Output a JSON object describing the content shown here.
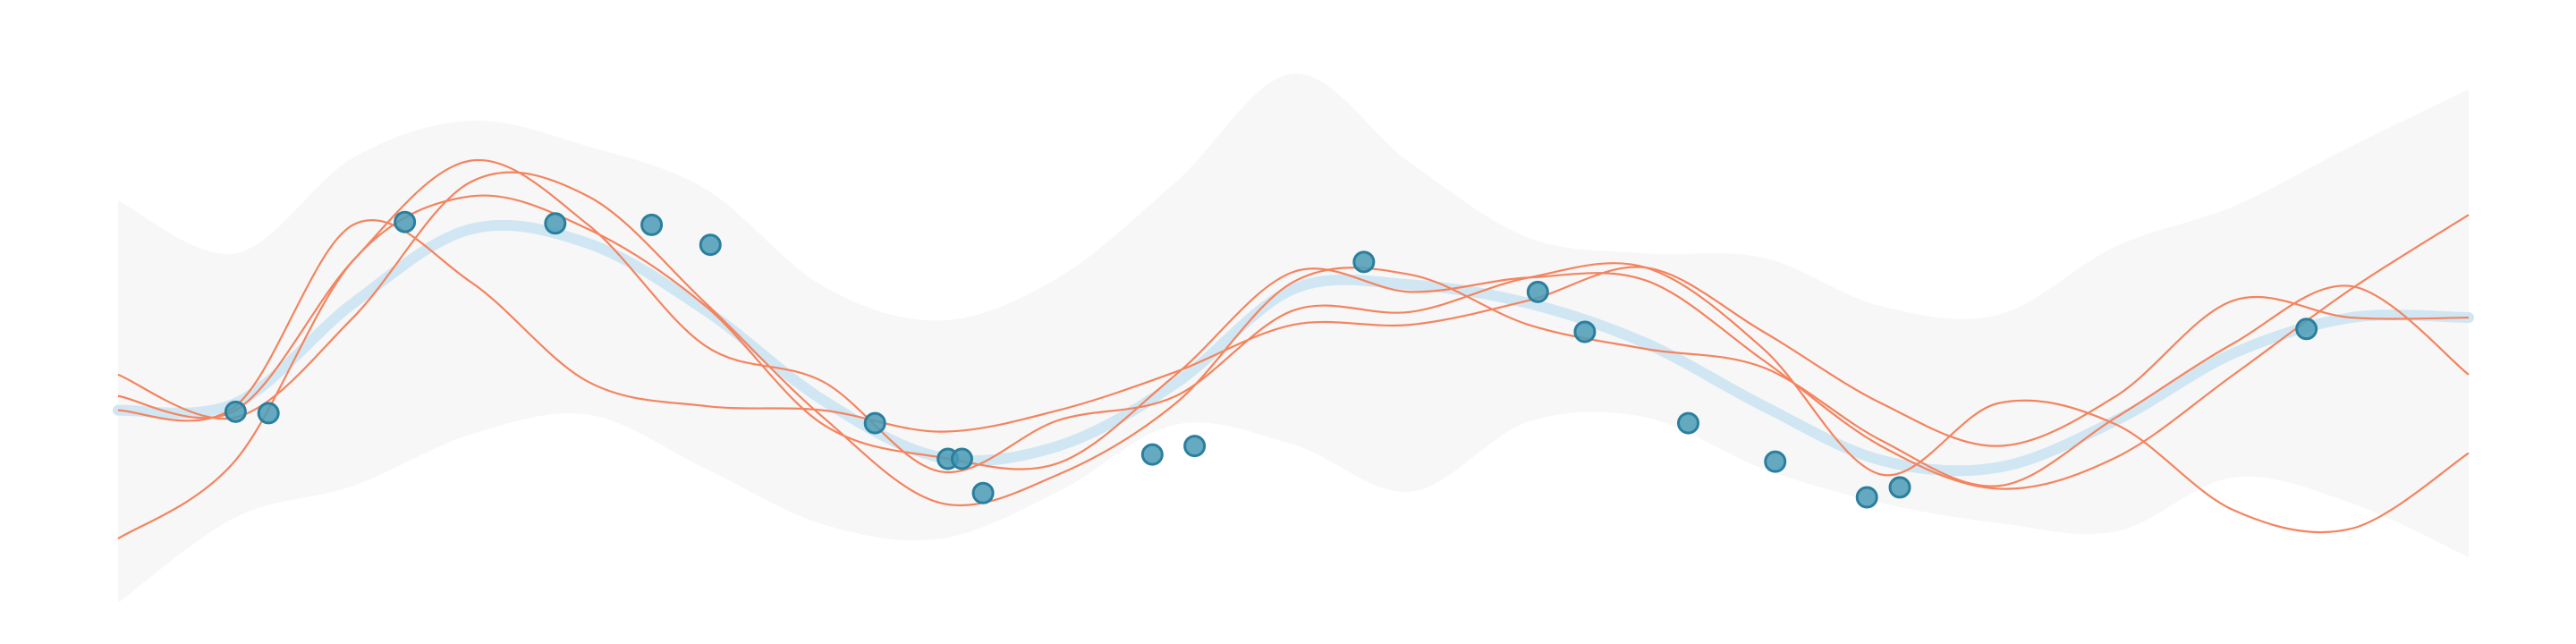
{
  "chart_data": {
    "type": "line",
    "title": "",
    "xlabel": "",
    "ylabel": "",
    "xlim": [
      0,
      10
    ],
    "ylim": [
      -2,
      2
    ],
    "grid": false,
    "legend": "none",
    "colors": {
      "band": "#f7f7f7",
      "mean": "#d0e6f3",
      "samples": "#f4845f",
      "observations": "#4a9bb5",
      "observations_edge": "#2b7f9e"
    },
    "confidence_band": {
      "x": [
        0,
        0.5,
        1,
        1.5,
        2,
        2.5,
        3,
        3.5,
        4,
        4.5,
        5,
        5.5,
        6,
        6.5,
        7,
        7.5,
        8,
        8.5,
        9,
        9.5,
        10
      ],
      "upper": [
        0.92,
        0.55,
        1.22,
        1.48,
        1.3,
        1.0,
        0.32,
        0.08,
        0.38,
        1.05,
        1.81,
        1.18,
        0.66,
        0.55,
        0.52,
        0.18,
        0.12,
        0.6,
        0.88,
        1.3,
        1.7
      ],
      "lower": [
        -1.9,
        -1.3,
        -1.08,
        -0.72,
        -0.58,
        -0.96,
        -1.35,
        -1.45,
        -1.12,
        -0.65,
        -0.79,
        -1.12,
        -0.63,
        -0.6,
        -0.96,
        -1.2,
        -1.34,
        -1.4,
        -1.02,
        -1.2,
        -1.58
      ]
    },
    "mean": {
      "x": [
        0,
        0.5,
        1,
        1.5,
        2,
        2.5,
        3,
        3.5,
        4,
        4.5,
        5,
        5.5,
        6,
        6.5,
        7,
        7.5,
        8,
        8.5,
        9,
        9.5,
        10
      ],
      "y": [
        -0.55,
        -0.5,
        0.2,
        0.72,
        0.62,
        0.15,
        -0.48,
        -0.88,
        -0.8,
        -0.36,
        0.3,
        0.33,
        0.2,
        -0.08,
        -0.52,
        -0.9,
        -0.95,
        -0.62,
        -0.15,
        0.1,
        0.1
      ]
    },
    "samples": [
      {
        "x": [
          0,
          0.5,
          1,
          1.5,
          2,
          2.5,
          3,
          3.5,
          4,
          4.5,
          5,
          5.5,
          6,
          6.5,
          7,
          7.5,
          8,
          8.5,
          9,
          9.5,
          10
        ],
        "y": [
          -0.3,
          -0.6,
          0.1,
          1.05,
          0.95,
          0.2,
          -0.6,
          -1.2,
          -1.0,
          -0.5,
          0.35,
          0.4,
          0.05,
          -0.12,
          -0.25,
          -0.76,
          -1.08,
          -0.6,
          -0.08,
          0.32,
          -0.3
        ]
      },
      {
        "x": [
          0,
          0.5,
          1,
          1.5,
          2,
          2.5,
          3,
          3.5,
          4,
          4.5,
          5,
          5.5,
          6,
          6.5,
          7,
          7.5,
          8,
          8.5,
          9,
          9.5,
          10
        ],
        "y": [
          -0.45,
          -0.55,
          0.5,
          1.2,
          0.75,
          -0.1,
          -0.35,
          -0.98,
          -0.62,
          -0.45,
          0.15,
          0.14,
          0.38,
          0.45,
          -0.12,
          -1.0,
          -0.5,
          -0.65,
          -1.25,
          -1.38,
          -0.85
        ]
      },
      {
        "x": [
          0,
          0.5,
          1,
          1.5,
          2,
          2.5,
          3,
          3.5,
          4,
          4.5,
          5,
          5.5,
          6,
          6.5,
          7,
          7.5,
          8,
          8.5,
          9,
          9.5,
          10
        ],
        "y": [
          -1.45,
          -0.9,
          0.5,
          0.95,
          0.72,
          0.18,
          -0.65,
          -0.88,
          -0.92,
          -0.3,
          0.42,
          0.28,
          0.38,
          0.36,
          -0.2,
          -0.8,
          -1.1,
          -0.88,
          -0.3,
          0.3,
          0.82
        ]
      },
      {
        "x": [
          0,
          0.5,
          1,
          1.5,
          2,
          2.5,
          3,
          3.5,
          4,
          4.5,
          5,
          5.5,
          6,
          6.5,
          7,
          7.5,
          8,
          8.5,
          9,
          9.5,
          10
        ],
        "y": [
          -0.55,
          -0.52,
          0.75,
          0.35,
          -0.35,
          -0.52,
          -0.55,
          -0.7,
          -0.55,
          -0.28,
          0.05,
          0.05,
          0.22,
          0.45,
          0.0,
          -0.5,
          -0.8,
          -0.45,
          0.22,
          0.1,
          0.1
        ]
      }
    ],
    "observations": {
      "x": [
        0.5,
        0.64,
        1.22,
        1.86,
        2.27,
        2.52,
        3.22,
        3.53,
        3.59,
        3.68,
        4.4,
        4.58,
        5.3,
        6.04,
        6.24,
        6.68,
        7.05,
        7.44,
        7.58,
        9.31
      ],
      "y": [
        -0.56,
        -0.57,
        0.77,
        0.76,
        0.75,
        0.61,
        -0.64,
        -0.89,
        -0.89,
        -1.13,
        -0.86,
        -0.8,
        0.49,
        0.28,
        0.0,
        -0.64,
        -0.91,
        -1.16,
        -1.09,
        0.02
      ]
    }
  }
}
